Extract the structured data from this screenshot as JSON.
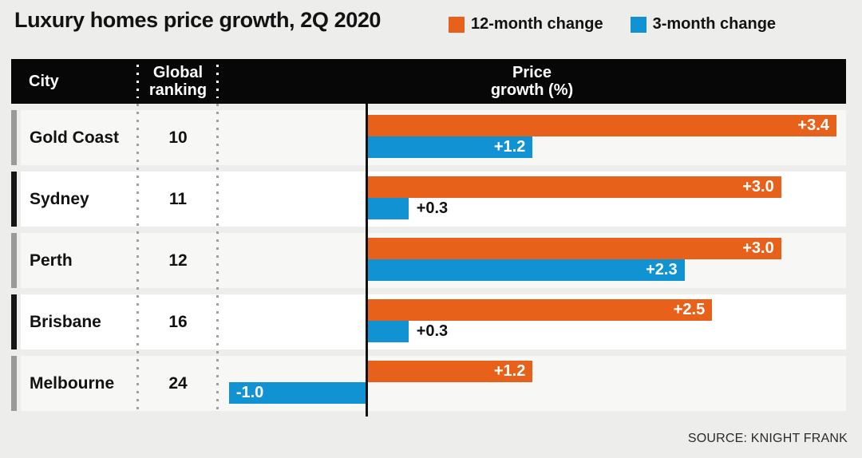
{
  "title": "Luxury homes price growth, 2Q 2020",
  "legend": [
    {
      "label": "12-month change",
      "color": "#e7611a"
    },
    {
      "label": "3-month change",
      "color": "#1193d3"
    }
  ],
  "table": {
    "col_city": "City",
    "col_ranking": "Global ranking",
    "col_growth": "Price growth (%)"
  },
  "rows": [
    {
      "city": "Gold Coast",
      "ranking": "10",
      "marker": "gray",
      "bars": [
        {
          "series": "12-month change",
          "value": 3.4,
          "label": "+3.4",
          "label_pos": "inside-right"
        },
        {
          "series": "3-month change",
          "value": 1.2,
          "label": "+1.2",
          "label_pos": "inside-right"
        }
      ]
    },
    {
      "city": "Sydney",
      "ranking": "11",
      "marker": "black",
      "bars": [
        {
          "series": "12-month change",
          "value": 3.0,
          "label": "+3.0",
          "label_pos": "inside-right"
        },
        {
          "series": "3-month change",
          "value": 0.3,
          "label": "+0.3",
          "label_pos": "outside-right"
        }
      ]
    },
    {
      "city": "Perth",
      "ranking": "12",
      "marker": "gray",
      "bars": [
        {
          "series": "12-month change",
          "value": 3.0,
          "label": "+3.0",
          "label_pos": "inside-right"
        },
        {
          "series": "3-month change",
          "value": 2.3,
          "label": "+2.3",
          "label_pos": "inside-right"
        }
      ]
    },
    {
      "city": "Brisbane",
      "ranking": "16",
      "marker": "black",
      "bars": [
        {
          "series": "12-month change",
          "value": 2.5,
          "label": "+2.5",
          "label_pos": "inside-right"
        },
        {
          "series": "3-month change",
          "value": 0.3,
          "label": "+0.3",
          "label_pos": "outside-right"
        }
      ]
    },
    {
      "city": "Melbourne",
      "ranking": "24",
      "marker": "gray",
      "bars": [
        {
          "series": "12-month change",
          "value": 1.2,
          "label": "+1.2",
          "label_pos": "inside-right"
        },
        {
          "series": "3-month change",
          "value": -1.0,
          "label": "-1.0",
          "label_pos": "inside-left"
        }
      ]
    }
  ],
  "chart_data": {
    "type": "bar",
    "orientation": "horizontal",
    "title": "Luxury homes price growth, 2Q 2020",
    "xlabel": "Price growth (%)",
    "categories": [
      "Gold Coast",
      "Sydney",
      "Perth",
      "Brisbane",
      "Melbourne"
    ],
    "global_rankings": [
      10,
      11,
      12,
      16,
      24
    ],
    "series": [
      {
        "name": "12-month change",
        "color": "#e7611a",
        "values": [
          3.4,
          3.0,
          3.0,
          2.5,
          1.2
        ]
      },
      {
        "name": "3-month change",
        "color": "#1193d3",
        "values": [
          1.2,
          0.3,
          2.3,
          0.3,
          -1.0
        ]
      }
    ],
    "xlim": [
      -1.08,
      3.47
    ],
    "grid": false,
    "legend_position": "top-right"
  },
  "source": "SOURCE: KNIGHT FRANK"
}
